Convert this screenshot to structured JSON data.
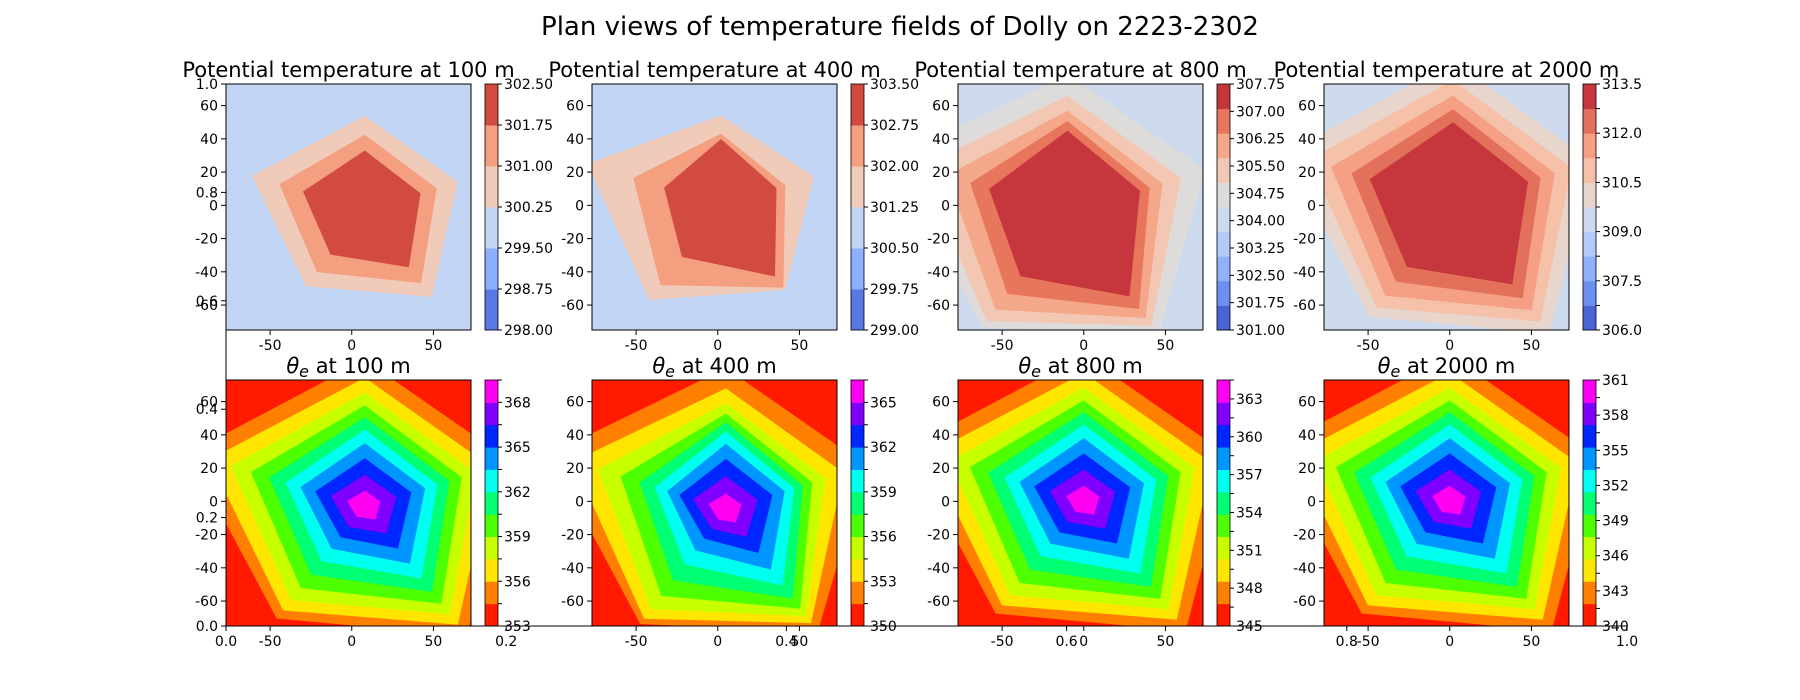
{
  "figure": {
    "suptitle": "Plan views of temperature fields of Dolly on 2223-2302",
    "background": "#ffffff"
  },
  "axes_frame": {
    "bottom_ticks": [
      "0.0",
      "0.2",
      "0.4",
      "0.6",
      "0.8",
      "1.0"
    ],
    "left_ticks": [
      "0.0",
      "0.2",
      "0.4",
      "0.6",
      "0.8",
      "1.0"
    ]
  },
  "chart_data": [
    {
      "type": "heatmap",
      "plot_kind": "filled-contour",
      "title": "Potential temperature at 100 m",
      "title_segments": [],
      "xticks": [
        -50,
        0,
        50
      ],
      "yticks": [
        -60,
        -40,
        -20,
        0,
        20,
        40,
        60
      ],
      "xlim": [
        -77,
        73
      ],
      "ylim": [
        -75,
        73
      ],
      "cmap": "coolwarm",
      "colorbar_levels": [
        298.0,
        298.75,
        299.5,
        300.25,
        301.0,
        301.75,
        302.5
      ],
      "colorbar_tick_labels": [
        "298.00",
        "298.75",
        "299.50",
        "300.25",
        "301.00",
        "301.75",
        "302.50"
      ],
      "colorbar_colors": [
        "#5a78e4",
        "#8caffe",
        "#c3d5f4",
        "#f0cbb9",
        "#f39f80",
        "#d24b40"
      ],
      "warm_peak": "inner",
      "shape_distortion": "low",
      "center_x": 8,
      "center_y": -3,
      "extent": [
        78,
        72
      ]
    },
    {
      "type": "heatmap",
      "plot_kind": "filled-contour",
      "title": "Potential temperature at 400 m",
      "title_segments": [],
      "xticks": [
        -50,
        0,
        50
      ],
      "yticks": [
        -60,
        -40,
        -20,
        0,
        20,
        40,
        60
      ],
      "xlim": [
        -77,
        73
      ],
      "ylim": [
        -75,
        73
      ],
      "cmap": "coolwarm",
      "colorbar_levels": [
        299.0,
        299.75,
        300.5,
        301.25,
        302.0,
        302.75,
        303.5
      ],
      "colorbar_tick_labels": [
        "299.00",
        "299.75",
        "300.50",
        "301.25",
        "302.00",
        "302.75",
        "303.50"
      ],
      "colorbar_colors": [
        "#5a78e4",
        "#8caffe",
        "#c3d5f4",
        "#f0cbb9",
        "#f39f80",
        "#d24b40"
      ],
      "warm_peak": "inner",
      "shape_distortion": "high",
      "center_x": 2,
      "center_y": 0,
      "extent": [
        85,
        80
      ]
    },
    {
      "type": "heatmap",
      "plot_kind": "filled-contour",
      "title": "Potential temperature at 800 m",
      "title_segments": [],
      "xticks": [
        -50,
        0,
        50
      ],
      "yticks": [
        -60,
        -40,
        -20,
        0,
        20,
        40,
        60
      ],
      "xlim": [
        -77,
        73
      ],
      "ylim": [
        -75,
        73
      ],
      "cmap": "coolwarm",
      "colorbar_levels": [
        301.0,
        301.75,
        302.5,
        303.25,
        304.0,
        304.75,
        305.5,
        306.25,
        307.0,
        307.75
      ],
      "colorbar_tick_labels": [
        "301.00",
        "301.75",
        "302.50",
        "303.25",
        "304.00",
        "304.75",
        "305.50",
        "306.25",
        "307.00",
        "307.75"
      ],
      "colorbar_colors": [
        "#4b64d5",
        "#6c8ff1",
        "#8fb1fe",
        "#b2cbfb",
        "#cdd9ec",
        "#dedcdb",
        "#f2c8b4",
        "#f5a889",
        "#e7765c",
        "#c5373c"
      ],
      "warm_peak": "inner",
      "shape_distortion": "medium",
      "center_x": -10,
      "center_y": -5,
      "extent": [
        105,
        100
      ]
    },
    {
      "type": "heatmap",
      "plot_kind": "filled-contour",
      "title": "Potential temperature at 2000 m",
      "title_segments": [],
      "xticks": [
        -50,
        0,
        50
      ],
      "yticks": [
        -60,
        -40,
        -20,
        0,
        20,
        40,
        60
      ],
      "xlim": [
        -77,
        73
      ],
      "ylim": [
        -75,
        73
      ],
      "cmap": "coolwarm",
      "colorbar_levels": [
        306.0,
        306.75,
        307.5,
        308.25,
        309.0,
        309.75,
        310.5,
        311.25,
        312.0,
        312.75,
        313.5
      ],
      "colorbar_tick_labels": [
        "306.0",
        "",
        "307.5",
        "",
        "309.0",
        "",
        "310.5",
        "",
        "312.0",
        "",
        "313.5"
      ],
      "colorbar_colors": [
        "#4b64d5",
        "#6c8ff1",
        "#8fb1fe",
        "#b2cbfb",
        "#cdd9ec",
        "#e8d6cc",
        "#f5c1a8",
        "#f5a084",
        "#e2705a",
        "#c5373c"
      ],
      "warm_peak": "inner",
      "shape_distortion": "low",
      "center_x": 2,
      "center_y": 0,
      "extent": [
        105,
        100
      ]
    },
    {
      "type": "heatmap",
      "plot_kind": "filled-contour",
      "title": "",
      "title_segments": [
        {
          "text": "θ",
          "style": "italic"
        },
        {
          "text": "e",
          "style": "italic-sub"
        },
        {
          "text": " at 100 m",
          "style": "normal"
        }
      ],
      "xticks": [
        -50,
        0,
        50
      ],
      "yticks": [
        -60,
        -40,
        -20,
        0,
        20,
        40,
        60
      ],
      "xlim": [
        -77,
        73
      ],
      "ylim": [
        -75,
        73
      ],
      "cmap": "gist_rainbow_r",
      "colorbar_levels": [
        353,
        354.5,
        356,
        357.5,
        359,
        360.5,
        362,
        363.5,
        365,
        366.5,
        368,
        369.5
      ],
      "colorbar_tick_labels": [
        "353",
        "",
        "356",
        "",
        "359",
        "",
        "362",
        "",
        "365",
        "",
        "368",
        ""
      ],
      "colorbar_colors": [
        "#ff1a00",
        "#ff8000",
        "#ffe600",
        "#c8ff00",
        "#4dff00",
        "#00ff73",
        "#00ffee",
        "#0096ff",
        "#0026ff",
        "#8000ff",
        "#ff00f2"
      ],
      "warm_peak": "outer",
      "shape_distortion": "low",
      "center_x": 8,
      "center_y": -3,
      "extent": [
        110,
        100
      ]
    },
    {
      "type": "heatmap",
      "plot_kind": "filled-contour",
      "title": "",
      "title_segments": [
        {
          "text": "θ",
          "style": "italic"
        },
        {
          "text": "e",
          "style": "italic-sub"
        },
        {
          "text": " at 400 m",
          "style": "normal"
        }
      ],
      "xticks": [
        -50,
        0,
        50
      ],
      "yticks": [
        -60,
        -40,
        -20,
        0,
        20,
        40,
        60
      ],
      "xlim": [
        -77,
        73
      ],
      "ylim": [
        -75,
        73
      ],
      "cmap": "gist_rainbow_r",
      "colorbar_levels": [
        350,
        351.5,
        353,
        354.5,
        356,
        357.5,
        359,
        360.5,
        362,
        363.5,
        365,
        366.5
      ],
      "colorbar_tick_labels": [
        "350",
        "",
        "353",
        "",
        "356",
        "",
        "359",
        "",
        "362",
        "",
        "365",
        ""
      ],
      "colorbar_colors": [
        "#ff1a00",
        "#ff8000",
        "#ffe600",
        "#c8ff00",
        "#4dff00",
        "#00ff73",
        "#00ffee",
        "#0096ff",
        "#0026ff",
        "#8000ff",
        "#ff00f2"
      ],
      "warm_peak": "outer",
      "shape_distortion": "medium",
      "center_x": 5,
      "center_y": -5,
      "extent": [
        105,
        100
      ]
    },
    {
      "type": "heatmap",
      "plot_kind": "filled-contour",
      "title": "",
      "title_segments": [
        {
          "text": "θ",
          "style": "italic"
        },
        {
          "text": "e",
          "style": "italic-sub"
        },
        {
          "text": " at 800 m",
          "style": "normal"
        }
      ],
      "xticks": [
        -50,
        0,
        50
      ],
      "yticks": [
        -60,
        -40,
        -20,
        0,
        20,
        40,
        60
      ],
      "xlim": [
        -77,
        73
      ],
      "ylim": [
        -75,
        73
      ],
      "cmap": "gist_rainbow_r",
      "colorbar_levels": [
        345,
        346.5,
        348,
        349.5,
        351,
        352.5,
        354,
        355.5,
        357,
        358.5,
        360,
        361.5,
        363,
        364.5
      ],
      "colorbar_tick_labels": [
        "345",
        "",
        "348",
        "",
        "351",
        "",
        "354",
        "",
        "357",
        "",
        "360",
        "",
        "363",
        ""
      ],
      "colorbar_colors": [
        "#ff1a00",
        "#ff8000",
        "#ffe600",
        "#c8ff00",
        "#4dff00",
        "#00ff73",
        "#00ffee",
        "#0096ff",
        "#0026ff",
        "#8000ff",
        "#ff00f2"
      ],
      "warm_peak": "outer",
      "shape_distortion": "low",
      "center_x": 0,
      "center_y": 0,
      "extent": [
        110,
        100
      ]
    },
    {
      "type": "heatmap",
      "plot_kind": "filled-contour",
      "title": "",
      "title_segments": [
        {
          "text": "θ",
          "style": "italic"
        },
        {
          "text": "e",
          "style": "italic-sub"
        },
        {
          "text": " at 2000 m",
          "style": "normal"
        }
      ],
      "xticks": [
        -50,
        0,
        50
      ],
      "yticks": [
        -60,
        -40,
        -20,
        0,
        20,
        40,
        60
      ],
      "xlim": [
        -77,
        73
      ],
      "ylim": [
        -75,
        73
      ],
      "cmap": "gist_rainbow_r",
      "colorbar_levels": [
        340,
        341.5,
        343,
        344.5,
        346,
        347.5,
        349,
        350.5,
        352,
        353.5,
        355,
        356.5,
        358,
        359.5,
        361
      ],
      "colorbar_tick_labels": [
        "340",
        "",
        "343",
        "",
        "346",
        "",
        "349",
        "",
        "352",
        "",
        "355",
        "",
        "358",
        "",
        "361"
      ],
      "colorbar_colors": [
        "#ff1a00",
        "#ff8000",
        "#ffe600",
        "#c8ff00",
        "#4dff00",
        "#00ff73",
        "#00ffee",
        "#0096ff",
        "#0026ff",
        "#8000ff",
        "#ff00f2"
      ],
      "warm_peak": "outer",
      "shape_distortion": "low",
      "center_x": 0,
      "center_y": 0,
      "extent": [
        110,
        100
      ]
    }
  ]
}
